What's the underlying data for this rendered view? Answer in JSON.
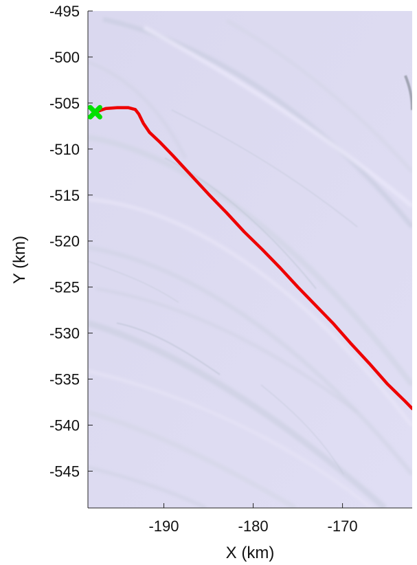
{
  "chart_data": {
    "type": "line",
    "title": "",
    "xlabel": "X (km)",
    "ylabel": "Y (km)",
    "xlim": [
      -198.5,
      -162.2
    ],
    "ylim": [
      -549.0,
      -495.0
    ],
    "x_ticks": [
      -190,
      -180,
      -170
    ],
    "x_tick_labels": [
      "-190",
      "-180",
      "-170"
    ],
    "y_ticks": [
      -495,
      -500,
      -505,
      -510,
      -515,
      -520,
      -525,
      -530,
      -535,
      -540,
      -545
    ],
    "y_tick_labels": [
      "-495",
      "-500",
      "-505",
      "-510",
      "-515",
      "-520",
      "-525",
      "-530",
      "-535",
      "-540",
      "-545"
    ],
    "grid": false,
    "legend": "none",
    "background": "satellite ice imagery (pale lavender with flow stripes)",
    "series": [
      {
        "color": "#ee0000",
        "x": [
          -197.7,
          -196.5,
          -195.2,
          -194.0,
          -193.2,
          -192.8,
          -192.3,
          -191.6,
          -190.5,
          -189.0,
          -187.0,
          -185.0,
          -183.0,
          -181.0,
          -179.0,
          -177.0,
          -175.0,
          -173.0,
          -171.0,
          -169.0,
          -167.0,
          -165.0,
          -163.0,
          -162.2
        ],
        "y": [
          -506.0,
          -505.6,
          -505.5,
          -505.5,
          -505.7,
          -506.2,
          -507.2,
          -508.2,
          -509.2,
          -510.7,
          -512.8,
          -514.9,
          -516.9,
          -519.0,
          -520.9,
          -522.9,
          -525.0,
          -527.0,
          -529.0,
          -531.2,
          -533.3,
          -535.5,
          -537.4,
          -538.2
        ]
      }
    ],
    "markers": [
      {
        "shape": "x",
        "color": "#00e000",
        "x": -197.7,
        "y": -506.0
      }
    ]
  }
}
